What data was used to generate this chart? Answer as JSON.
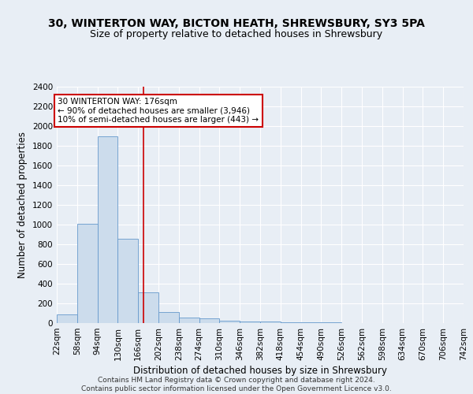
{
  "title_line1": "30, WINTERTON WAY, BICTON HEATH, SHREWSBURY, SY3 5PA",
  "title_line2": "Size of property relative to detached houses in Shrewsbury",
  "xlabel": "Distribution of detached houses by size in Shrewsbury",
  "ylabel": "Number of detached properties",
  "footer_line1": "Contains HM Land Registry data © Crown copyright and database right 2024.",
  "footer_line2": "Contains public sector information licensed under the Open Government Licence v3.0.",
  "bin_edges": [
    22,
    58,
    94,
    130,
    166,
    202,
    238,
    274,
    310,
    346,
    382,
    418,
    454,
    490,
    526,
    562,
    598,
    634,
    670,
    706,
    742
  ],
  "bar_heights": [
    90,
    1010,
    1900,
    860,
    315,
    115,
    55,
    45,
    25,
    20,
    15,
    10,
    8,
    5,
    4,
    3,
    2,
    2,
    1,
    1
  ],
  "bar_color": "#ccdcec",
  "bar_edge_color": "#6699cc",
  "property_size": 176,
  "property_line_color": "#cc0000",
  "annotation_line1": "30 WINTERTON WAY: 176sqm",
  "annotation_line2": "← 90% of detached houses are smaller (3,946)",
  "annotation_line3": "10% of semi-detached houses are larger (443) →",
  "annotation_box_color": "#ffffff",
  "annotation_border_color": "#cc0000",
  "ylim": [
    0,
    2400
  ],
  "yticks": [
    0,
    200,
    400,
    600,
    800,
    1000,
    1200,
    1400,
    1600,
    1800,
    2000,
    2200,
    2400
  ],
  "background_color": "#e8eef5",
  "grid_color": "#ffffff",
  "title_fontsize": 10,
  "subtitle_fontsize": 9,
  "axis_label_fontsize": 8.5,
  "tick_fontsize": 7.5,
  "footer_fontsize": 6.5
}
